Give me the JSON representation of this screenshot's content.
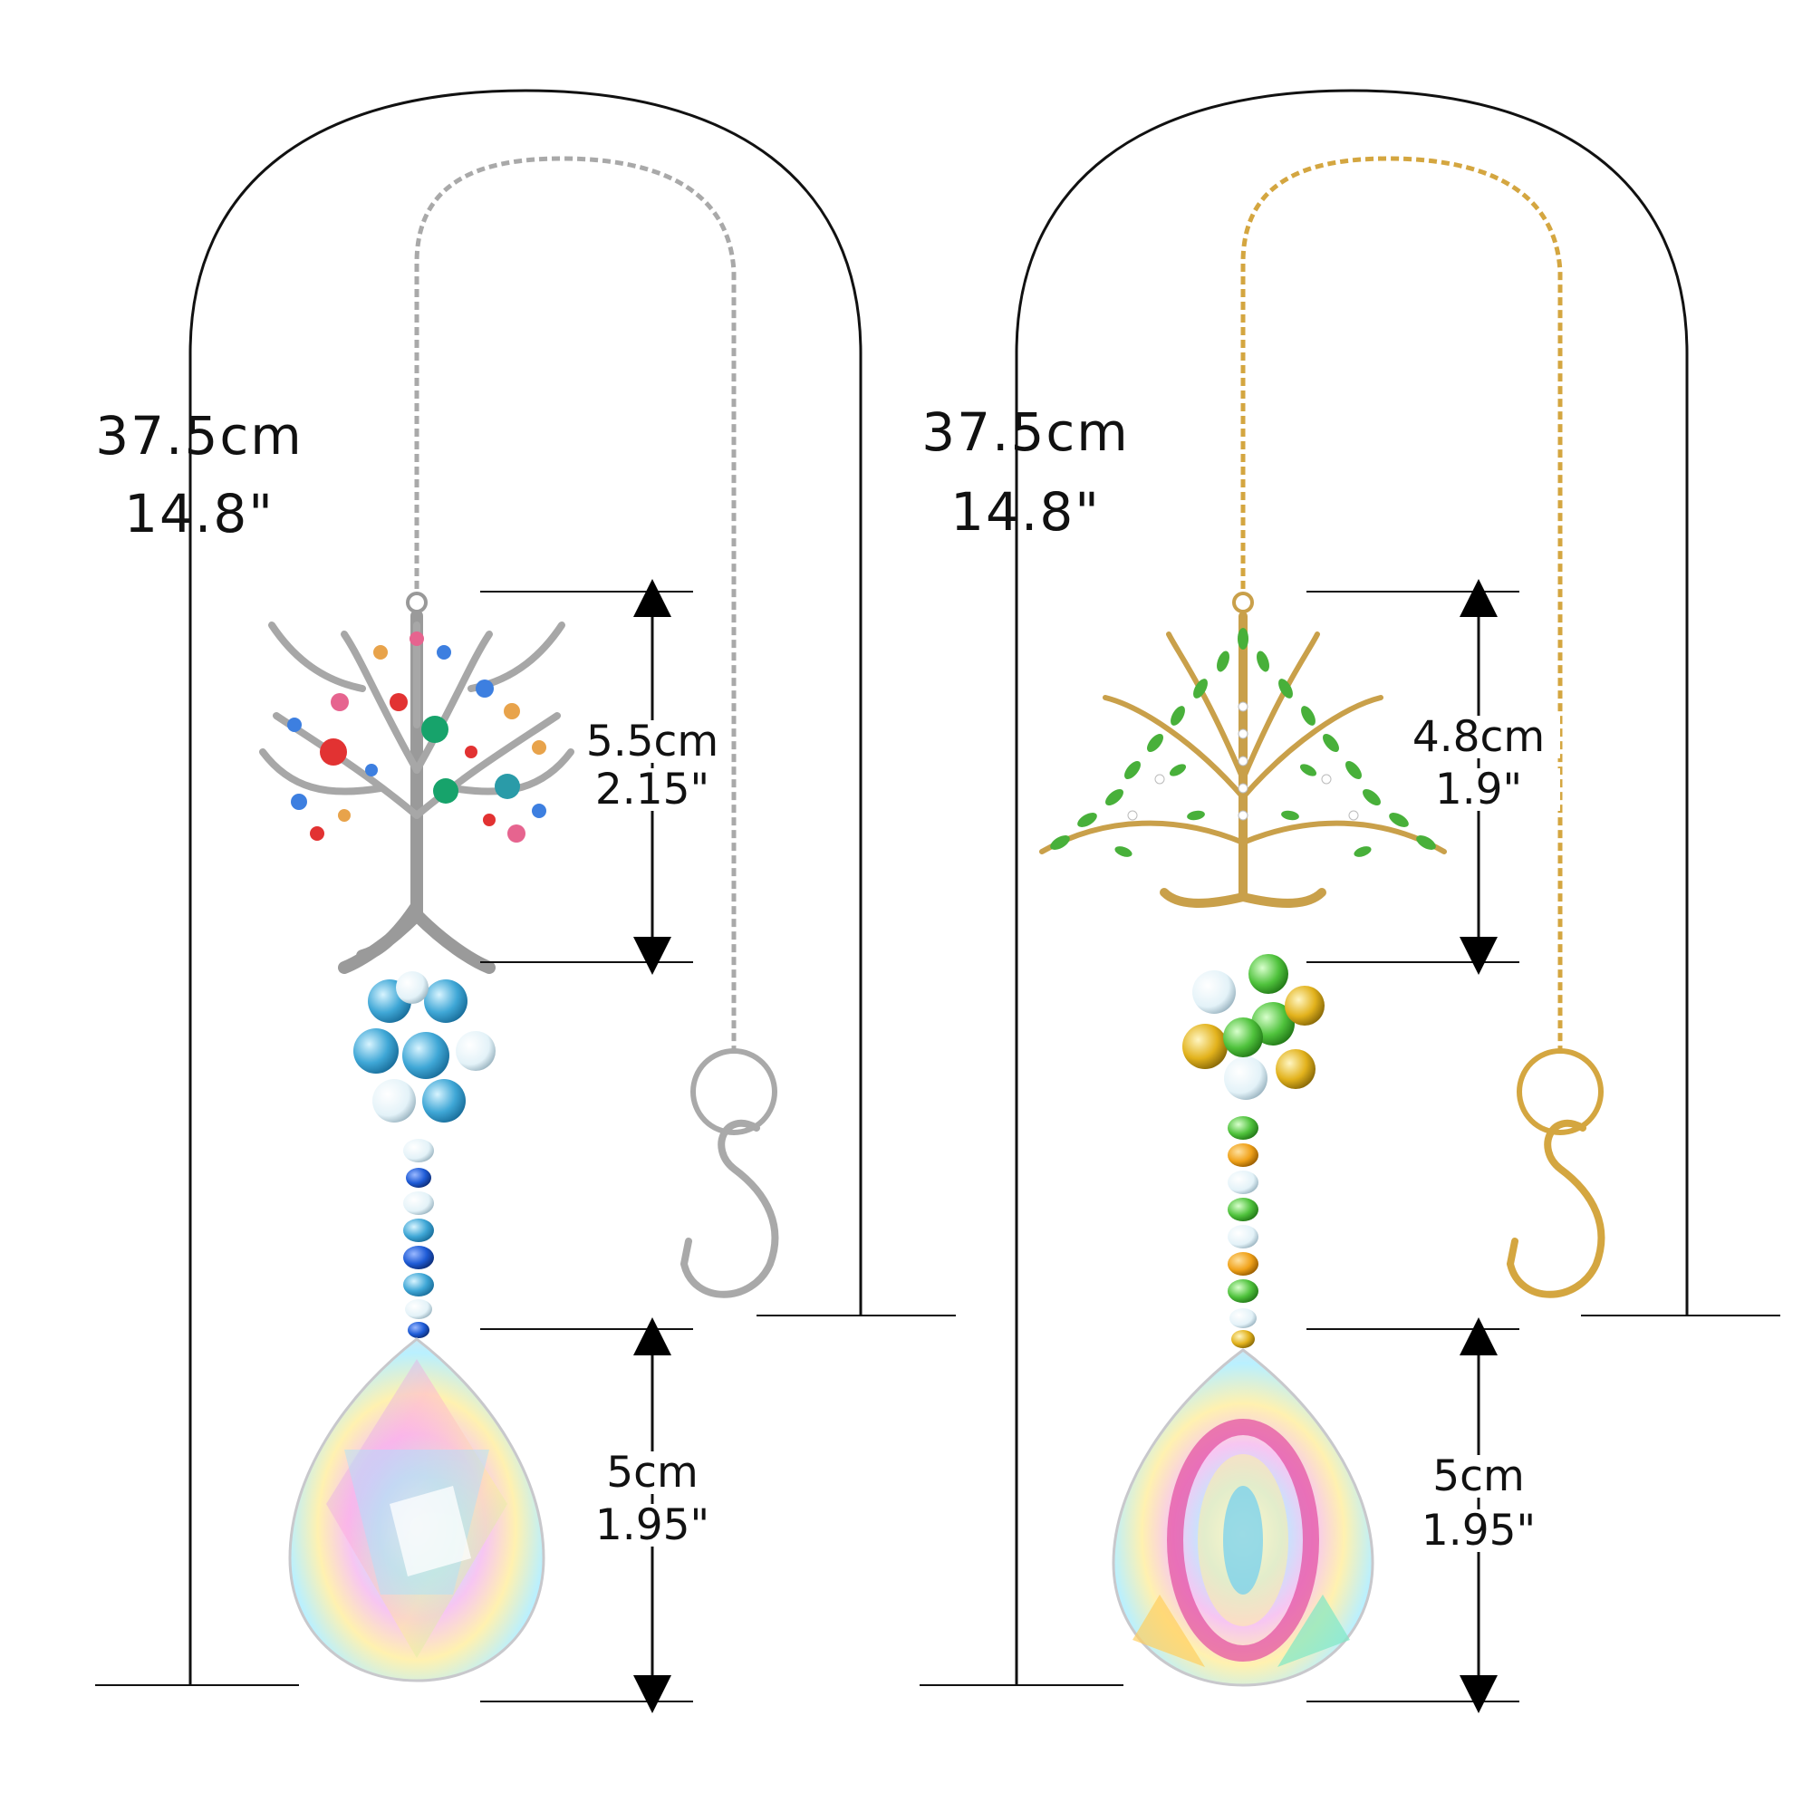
{
  "product_left": {
    "total_length_cm": "37.5cm",
    "total_length_in": "14.8\"",
    "pendant_height_cm": "5.5cm",
    "pendant_height_in": "2.15\"",
    "prism_height_cm": "5cm",
    "prism_height_in": "1.95\"",
    "metal_color": "#a9a9a9",
    "tree_icon": "tree-of-life-multicolor-rhinestone-icon",
    "bead_colors": [
      "#3fa7d6",
      "#1e5bd6",
      "#cfe9f5"
    ]
  },
  "product_right": {
    "total_length_cm": "37.5cm",
    "total_length_in": "14.8\"",
    "pendant_height_cm": "4.8cm",
    "pendant_height_in": "1.9\"",
    "prism_height_cm": "5cm",
    "prism_height_in": "1.95\"",
    "metal_color": "#d4a640",
    "tree_icon": "tree-of-life-green-leaf-icon",
    "bead_colors": [
      "#4fc23c",
      "#e2b21c",
      "#e4f2d8"
    ]
  }
}
